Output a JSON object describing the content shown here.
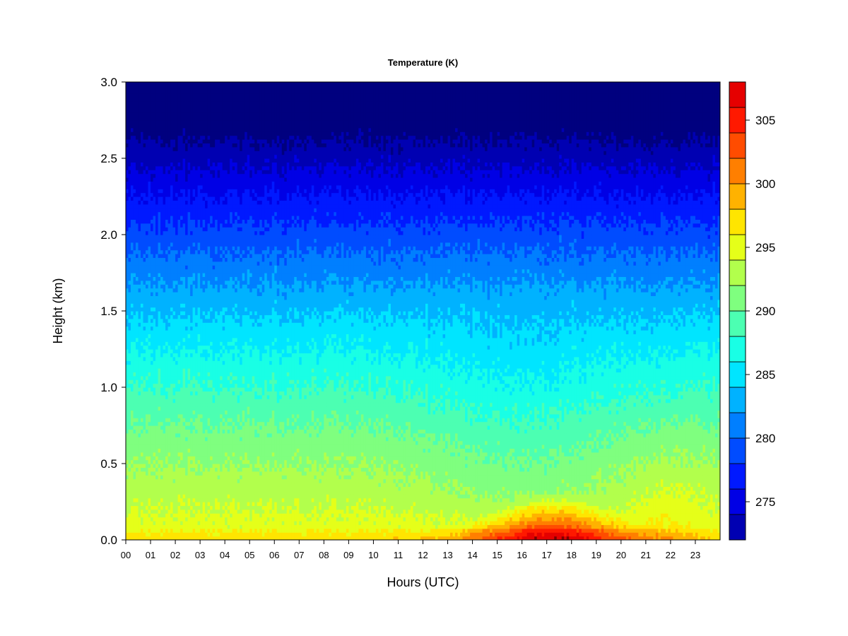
{
  "chart_data": {
    "type": "heatmap",
    "title": "Temperature (K)",
    "xlabel": "Hours (UTC)",
    "ylabel": "Height (km)",
    "xlim": [
      0,
      24
    ],
    "ylim": [
      0,
      3.0
    ],
    "x_ticks": [
      "00",
      "01",
      "02",
      "03",
      "04",
      "05",
      "06",
      "07",
      "08",
      "09",
      "10",
      "11",
      "12",
      "13",
      "14",
      "15",
      "16",
      "17",
      "18",
      "19",
      "20",
      "21",
      "22",
      "23"
    ],
    "y_ticks": [
      "0.0",
      "0.5",
      "1.0",
      "1.5",
      "2.0",
      "2.5",
      "3.0"
    ],
    "colorbar": {
      "levels": [
        272,
        274,
        276,
        278,
        280,
        282,
        284,
        286,
        288,
        290,
        292,
        294,
        296,
        298,
        300,
        302,
        304,
        306,
        308
      ],
      "colors": [
        "#00007F",
        "#0000B2",
        "#0000E5",
        "#0019FF",
        "#004CFF",
        "#007FFF",
        "#00B2FF",
        "#00E5FF",
        "#19FFE5",
        "#4CFFB2",
        "#7FFF7F",
        "#B2FF4C",
        "#E5FF19",
        "#FFE500",
        "#FFB200",
        "#FF7F00",
        "#FF4C00",
        "#FF1900",
        "#E50000",
        "#B20000",
        "#7F0000"
      ],
      "tick_labels": [
        "275",
        "280",
        "285",
        "290",
        "295",
        "300",
        "305"
      ]
    },
    "grid": false,
    "legend": "colorbar on right",
    "profile_summary": "temperature decreases with height from about 293-296 K near surface to about 275 K at 3 km; afternoon surface heating 13-20 UTC reaches about 304-306 K below 0.3 km"
  }
}
